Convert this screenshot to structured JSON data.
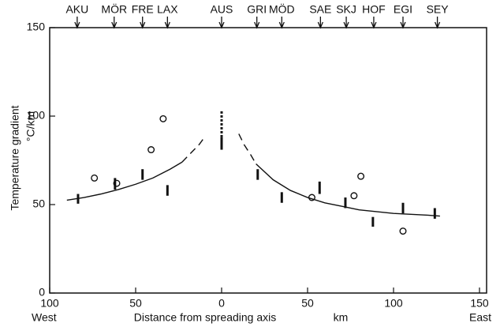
{
  "chart_data": {
    "type": "scatter",
    "ylabel": "Temperature gradient",
    "yunit": "°C/km",
    "xlabel": "Distance from spreading axis",
    "xunit": "km",
    "xleft": "West",
    "xright": "East",
    "xlim": [
      -100,
      150
    ],
    "ylim": [
      0,
      150
    ],
    "xticks": [
      {
        "value": -100,
        "label": "100"
      },
      {
        "value": -50,
        "label": "50"
      },
      0,
      50,
      100,
      150
    ],
    "yticks": [
      0,
      50,
      100,
      150
    ],
    "color": "#111111",
    "stations": {
      "names": [
        "AKU",
        "MÖR",
        "FRE",
        "LAX",
        "AUS",
        "GRI",
        "MÖD",
        "SAE",
        "SKJ",
        "HOF",
        "EGI",
        "SEY"
      ],
      "x": [
        -84,
        -62.5,
        -46,
        -31.5,
        0,
        20.5,
        35,
        57.5,
        72.5,
        88.5,
        105.5,
        125.5
      ]
    },
    "ranges": {
      "x": [
        -83.5,
        -62,
        -46,
        -31.5,
        0,
        21,
        35,
        57,
        72,
        88,
        105.5,
        124
      ],
      "low": [
        50.5,
        58.5,
        64,
        55,
        81,
        64,
        51,
        56,
        48,
        37.5,
        45,
        42
      ],
      "high": [
        56,
        65,
        70,
        61,
        88,
        70,
        57,
        63,
        54,
        43,
        51,
        48
      ]
    },
    "dotted_ranges": {
      "x": [
        0
      ],
      "low": [
        88
      ],
      "high": [
        103
      ]
    },
    "points": {
      "x": [
        -74,
        -61,
        -41,
        -34,
        52.5,
        77,
        81,
        105.5
      ],
      "y": [
        65,
        62,
        81,
        98.5,
        54,
        55,
        66,
        35
      ]
    },
    "curves": [
      {
        "dash": false,
        "x": [
          -90,
          -80,
          -70,
          -60,
          -50,
          -40,
          -30,
          -23
        ],
        "y": [
          52.5,
          54,
          56,
          58.5,
          61.5,
          65,
          70,
          74
        ]
      },
      {
        "dash": true,
        "x": [
          -23,
          -18,
          -13,
          -10
        ],
        "y": [
          74,
          79,
          84,
          88
        ]
      },
      {
        "dash": true,
        "x": [
          10,
          13,
          17,
          20
        ],
        "y": [
          90,
          84,
          78,
          73
        ]
      },
      {
        "dash": false,
        "x": [
          20,
          30,
          40,
          50,
          60,
          70,
          80,
          90,
          100,
          110,
          120,
          127
        ],
        "y": [
          73,
          64,
          58,
          54,
          51,
          49,
          47,
          46,
          45,
          44.5,
          44,
          43.5
        ]
      }
    ]
  }
}
